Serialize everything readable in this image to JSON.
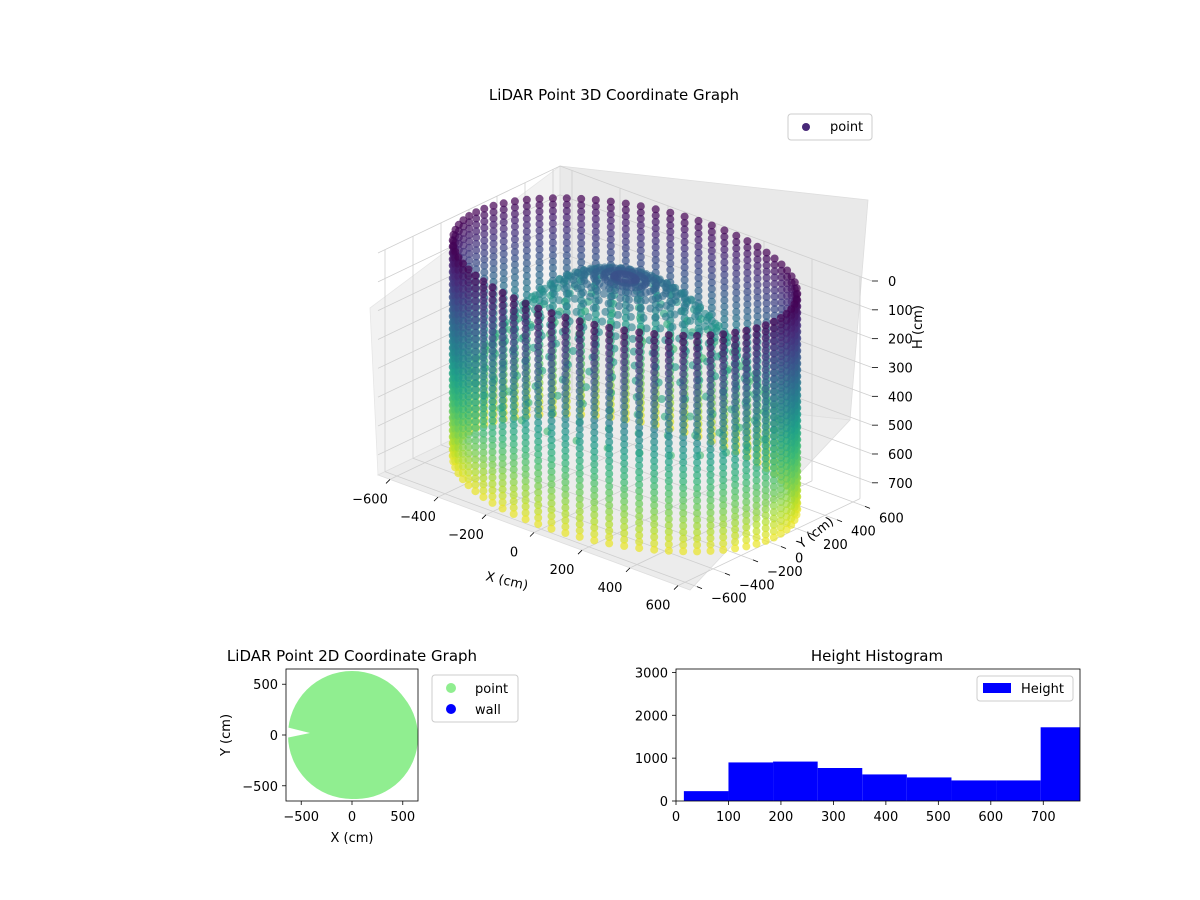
{
  "chart_data": [
    {
      "type": "scatter",
      "projection": "3d",
      "title": "LiDAR Point 3D Coordinate Graph",
      "xlabel": "X (cm)",
      "ylabel": "Y (cm)",
      "zlabel": "H (cm)",
      "xticks": [
        "−600",
        "−400",
        "−200",
        "0",
        "200",
        "400",
        "600"
      ],
      "yticks": [
        "−600",
        "−400",
        "−200",
        "0",
        "200",
        "400",
        "600"
      ],
      "zticks": [
        "0",
        "100",
        "200",
        "300",
        "400",
        "500",
        "600",
        "700"
      ],
      "xlim": [
        -650,
        650
      ],
      "ylim": [
        -650,
        650
      ],
      "zlim": [
        0,
        770
      ],
      "z_axis_inverted": true,
      "colormap": "viridis",
      "legend": {
        "entries": [
          "point"
        ],
        "placement": "upper right",
        "color": "#482878"
      },
      "description_series": {
        "name": "point",
        "shape": "cylindrical wall of radius ~620 cm, heights 0–770 cm, plus ~30 curved rays from the centre top"
      }
    },
    {
      "type": "scatter",
      "title": "LiDAR Point 2D Coordinate Graph",
      "xlabel": "X (cm)",
      "ylabel": "Y (cm)",
      "xticks": [
        "−500",
        "0",
        "500"
      ],
      "yticks": [
        "−500",
        "0",
        "500"
      ],
      "xlim": [
        -650,
        650
      ],
      "ylim": [
        -650,
        650
      ],
      "legend": {
        "placement": "outside upper right"
      },
      "series": [
        {
          "name": "point",
          "color": "#90ee90",
          "shape": "filled disc radius ~620 cm with a notch near (-450, 0)"
        },
        {
          "name": "wall",
          "color": "#0000ff",
          "values": []
        }
      ]
    },
    {
      "type": "bar",
      "subtype": "histogram",
      "title": "Height Histogram",
      "xlabel": "",
      "ylabel": "",
      "xticks": [
        "0",
        "100",
        "200",
        "300",
        "400",
        "500",
        "600",
        "700"
      ],
      "yticks": [
        "0",
        "1000",
        "2000",
        "3000"
      ],
      "xlim": [
        0,
        770
      ],
      "ylim": [
        0,
        3080
      ],
      "color": "#0000ff",
      "legend": {
        "entries": [
          "Height"
        ],
        "placement": "upper right"
      },
      "bin_edges": [
        15,
        100,
        185,
        270,
        355,
        440,
        525,
        610,
        695,
        770
      ],
      "values": [
        230,
        900,
        920,
        770,
        620,
        550,
        480,
        480,
        1720
      ]
    }
  ]
}
